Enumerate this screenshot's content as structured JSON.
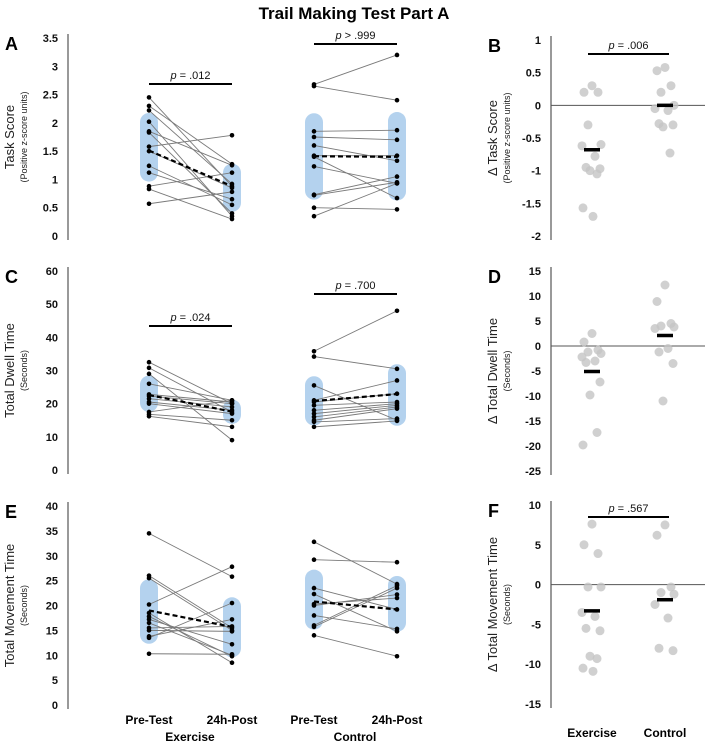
{
  "title": "Trail Making Test Part A",
  "x_labels": {
    "conditions": [
      "Pre-Test",
      "24h-Post"
    ],
    "groups": [
      "Exercise",
      "Control"
    ]
  },
  "colors": {
    "band": "#b4d2ee",
    "line": "#7a7a7a",
    "point": "#000000",
    "delta_point": "#c4c4c4"
  },
  "chart_data": [
    {
      "panel": "A",
      "type": "line",
      "ylabel": "Task Score",
      "ysub": "(Positive z-score units)",
      "ylim": [
        0,
        3.5
      ],
      "yticks": [
        "0",
        "0.5",
        "1",
        "1.5",
        "2",
        "2.5",
        "3",
        "3.5"
      ],
      "ytick_values": [
        0,
        0.5,
        1,
        1.5,
        2,
        2.5,
        3,
        3.5
      ],
      "groups": [
        {
          "name": "Exercise",
          "p_prefix": "p",
          "p_text": " = .012",
          "pre": [
            2.45,
            2.3,
            2.22,
            2.02,
            1.85,
            1.83,
            1.58,
            1.5,
            1.24,
            1.12,
            0.88,
            0.83,
            0.57
          ],
          "post": [
            0.88,
            1.27,
            0.92,
            0.35,
            1.25,
            0.4,
            1.78,
            0.85,
            0.55,
            0.65,
            1.12,
            0.3,
            0.78
          ],
          "mean": [
            1.51,
            0.88
          ]
        },
        {
          "name": "Control",
          "p_prefix": "p",
          "p_text": " > .999",
          "pre": [
            2.68,
            2.65,
            1.85,
            1.75,
            1.6,
            1.42,
            1.4,
            1.23,
            0.73,
            0.72,
            0.5,
            0.35
          ],
          "post": [
            3.2,
            2.4,
            1.87,
            1.7,
            1.33,
            1.42,
            0.67,
            0.93,
            1.05,
            0.95,
            0.47,
            0.93
          ],
          "mean": [
            1.41,
            1.4
          ]
        }
      ]
    },
    {
      "panel": "B",
      "type": "scatter",
      "ylabel": "Δ Task Score",
      "ysub": "(Positive z-score units)",
      "ylim": [
        -2,
        1
      ],
      "yticks": [
        "-2",
        "-1.5",
        "-1",
        "-0.5",
        "0",
        "0.5",
        "1"
      ],
      "ytick_values": [
        -2,
        -1.5,
        -1,
        -0.5,
        0,
        0.5,
        1
      ],
      "p_prefix": "p",
      "p_text": " = .006",
      "groups": [
        {
          "name": "Exercise",
          "values": [
            0.3,
            0.2,
            0.2,
            -0.3,
            -0.6,
            -0.62,
            -0.78,
            -0.95,
            -0.97,
            -1.0,
            -1.05,
            -1.57,
            -1.7
          ],
          "mean": -0.68
        },
        {
          "name": "Control",
          "values": [
            0.58,
            0.53,
            0.3,
            0.2,
            0,
            -0.05,
            -0.08,
            -0.28,
            -0.3,
            -0.33,
            -0.73
          ],
          "mean": 0.0
        }
      ]
    },
    {
      "panel": "C",
      "type": "line",
      "ylabel": "Total Dwell Time",
      "ysub": "(Seconds)",
      "ylim": [
        0,
        60
      ],
      "yticks": [
        "0",
        "10",
        "20",
        "30",
        "40",
        "50",
        "60"
      ],
      "ytick_values": [
        0,
        10,
        20,
        30,
        40,
        50,
        60
      ],
      "groups": [
        {
          "name": "Exercise",
          "p_prefix": "p",
          "p_text": " = .024",
          "pre": [
            32.5,
            30.8,
            29,
            26,
            22.8,
            22.3,
            21.5,
            20.5,
            20,
            17.5,
            16.8,
            16.2
          ],
          "post": [
            20,
            17.5,
            9,
            21,
            20.5,
            20,
            19,
            18,
            17,
            21,
            15,
            13
          ],
          "mean": [
            22.6,
            17.6
          ]
        },
        {
          "name": "Control",
          "p_prefix": "p",
          "p_text": " = .700",
          "pre": [
            35.8,
            34.2,
            25.5,
            21,
            20.5,
            19.5,
            18,
            17,
            16,
            15,
            14.5,
            13
          ],
          "post": [
            48,
            30.5,
            15,
            27,
            23,
            20.5,
            20,
            19.5,
            19,
            18.5,
            15.5,
            14.8
          ],
          "mean": [
            20.8,
            22.9
          ]
        }
      ]
    },
    {
      "panel": "D",
      "type": "scatter",
      "ylabel": "Δ Total Dwell Time",
      "ysub": "(Seconds)",
      "ylim": [
        -25,
        15
      ],
      "yticks": [
        "-25",
        "-20",
        "-15",
        "-10",
        "-5",
        "0",
        "5",
        "10",
        "15"
      ],
      "ytick_values": [
        -25,
        -20,
        -15,
        -10,
        -5,
        0,
        5,
        10,
        15
      ],
      "groups": [
        {
          "name": "Exercise",
          "values": [
            2.5,
            0.8,
            -0.8,
            -1.2,
            -1.5,
            -2.2,
            -3,
            -3.3,
            -7.2,
            -9.8,
            -17.3,
            -19.8
          ],
          "mean": -5.1
        },
        {
          "name": "Control",
          "values": [
            12.2,
            8.9,
            4.5,
            4,
            3.8,
            3.5,
            -0.5,
            -1.2,
            -3.5,
            -11
          ],
          "mean": 2.1
        }
      ]
    },
    {
      "panel": "E",
      "type": "line",
      "ylabel": "Total Movement Time",
      "ysub": "(Seconds)",
      "ylim": [
        0,
        40
      ],
      "yticks": [
        "0",
        "5",
        "10",
        "15",
        "20",
        "25",
        "30",
        "35",
        "40"
      ],
      "ytick_values": [
        0,
        5,
        10,
        15,
        20,
        25,
        30,
        35,
        40
      ],
      "groups": [
        {
          "name": "Exercise",
          "pre": [
            34.5,
            26,
            25.5,
            20.2,
            17.8,
            16.5,
            15.5,
            15,
            13.5,
            13.8,
            10.3,
            17.2,
            18.5
          ],
          "post": [
            25.8,
            15.5,
            15,
            27.8,
            9.8,
            10,
            15.8,
            14.8,
            20.5,
            17.2,
            10.2,
            12.2,
            8.5
          ],
          "mean": [
            19.0,
            15.7
          ]
        },
        {
          "name": "Control",
          "pre": [
            32.8,
            29.2,
            23.5,
            22.3,
            20.3,
            20,
            18,
            16,
            15.7,
            14
          ],
          "post": [
            24.3,
            28.7,
            19.2,
            14.8,
            21.5,
            22.2,
            15.3,
            24,
            23.5,
            9.8
          ],
          "mean": [
            20.8,
            19.2
          ]
        }
      ]
    },
    {
      "panel": "F",
      "type": "scatter",
      "ylabel": "Δ Total Movement Time",
      "ysub": "(Seconds)",
      "ylim": [
        -15,
        10
      ],
      "yticks": [
        "-15",
        "-10",
        "-5",
        "0",
        "5",
        "10"
      ],
      "ytick_values": [
        -15,
        -10,
        -5,
        0,
        5,
        10
      ],
      "p_prefix": "p",
      "p_text": " = .567",
      "groups": [
        {
          "name": "Exercise",
          "values": [
            7.6,
            5,
            3.9,
            -0.3,
            -0.3,
            -3.5,
            -4,
            -5.5,
            -5.8,
            -9,
            -9.3,
            -10.5,
            -10.9
          ],
          "mean": -3.3
        },
        {
          "name": "Control",
          "values": [
            7.5,
            6.2,
            -0.3,
            -1,
            -1.2,
            -2.5,
            -4.2,
            -8,
            -8.3
          ],
          "mean": -1.9
        }
      ]
    }
  ]
}
